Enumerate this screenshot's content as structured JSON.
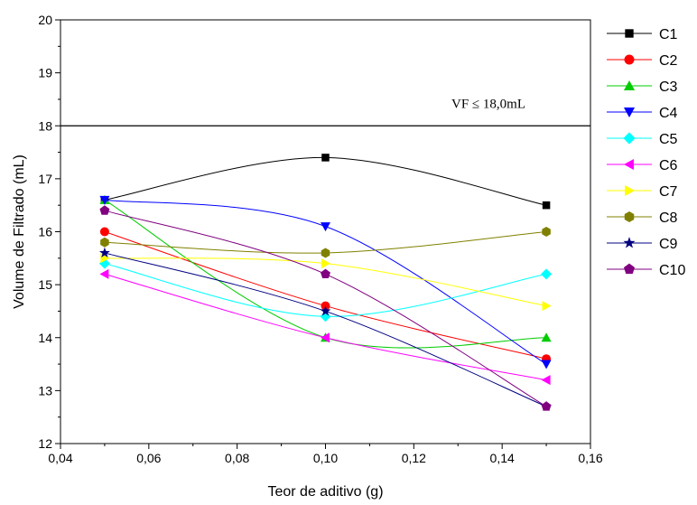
{
  "chart_data": {
    "type": "line",
    "title": "",
    "xlabel": "Teor de aditivo (g)",
    "ylabel": "Volume de Filtrado (mL)",
    "xlim": [
      0.04,
      0.16
    ],
    "ylim": [
      12,
      20
    ],
    "x_ticks": [
      "0,04",
      "0,06",
      "0,08",
      "0,10",
      "0,12",
      "0,14",
      "0,16"
    ],
    "y_ticks": [
      "12",
      "13",
      "14",
      "15",
      "16",
      "17",
      "18",
      "19",
      "20"
    ],
    "x": [
      0.05,
      0.1,
      0.15
    ],
    "legend_position": "right",
    "grid": false,
    "reference_line": {
      "y": 18.0,
      "label": "VF ≤ 18,0mL"
    },
    "series": [
      {
        "name": "C1",
        "color": "#000000",
        "marker": "square",
        "values": [
          16.6,
          17.4,
          16.5
        ]
      },
      {
        "name": "C2",
        "color": "#ff0000",
        "marker": "circle",
        "values": [
          16.0,
          14.6,
          13.6
        ]
      },
      {
        "name": "C3",
        "color": "#00cc00",
        "marker": "triangle-up",
        "values": [
          16.6,
          14.0,
          14.0
        ]
      },
      {
        "name": "C4",
        "color": "#0000ff",
        "marker": "triangle-down",
        "values": [
          16.6,
          16.1,
          13.5
        ]
      },
      {
        "name": "C5",
        "color": "#00ffff",
        "marker": "diamond",
        "values": [
          15.4,
          14.4,
          15.2
        ]
      },
      {
        "name": "C6",
        "color": "#ff00ff",
        "marker": "triangle-left",
        "values": [
          15.2,
          14.0,
          13.2
        ]
      },
      {
        "name": "C7",
        "color": "#ffff00",
        "marker": "triangle-right",
        "values": [
          15.5,
          15.4,
          14.6
        ]
      },
      {
        "name": "C8",
        "color": "#808000",
        "marker": "hexagon",
        "values": [
          15.8,
          15.6,
          16.0
        ]
      },
      {
        "name": "C9",
        "color": "#000080",
        "marker": "star",
        "values": [
          15.6,
          14.5,
          12.7
        ]
      },
      {
        "name": "C10",
        "color": "#800080",
        "marker": "pentagon",
        "values": [
          16.4,
          15.2,
          12.7
        ]
      }
    ]
  }
}
